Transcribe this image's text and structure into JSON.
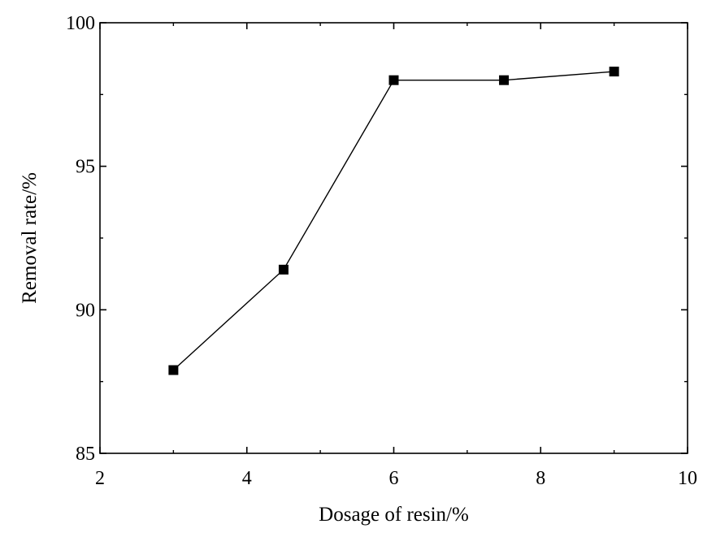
{
  "chart_data": {
    "type": "line",
    "title": "",
    "xlabel": "Dosage of resin/%",
    "ylabel": "Removal rate/%",
    "xlim": [
      2,
      10
    ],
    "ylim": [
      85,
      100
    ],
    "xticks": [
      2,
      4,
      6,
      8,
      10
    ],
    "yticks": [
      85,
      90,
      95,
      100
    ],
    "grid": false,
    "legend": "none",
    "marker": "square",
    "color": "#000000",
    "series": [
      {
        "x": [
          3,
          4.5,
          6,
          7.5,
          9
        ],
        "y": [
          87.9,
          91.4,
          98.0,
          98.0,
          98.3
        ]
      }
    ]
  }
}
